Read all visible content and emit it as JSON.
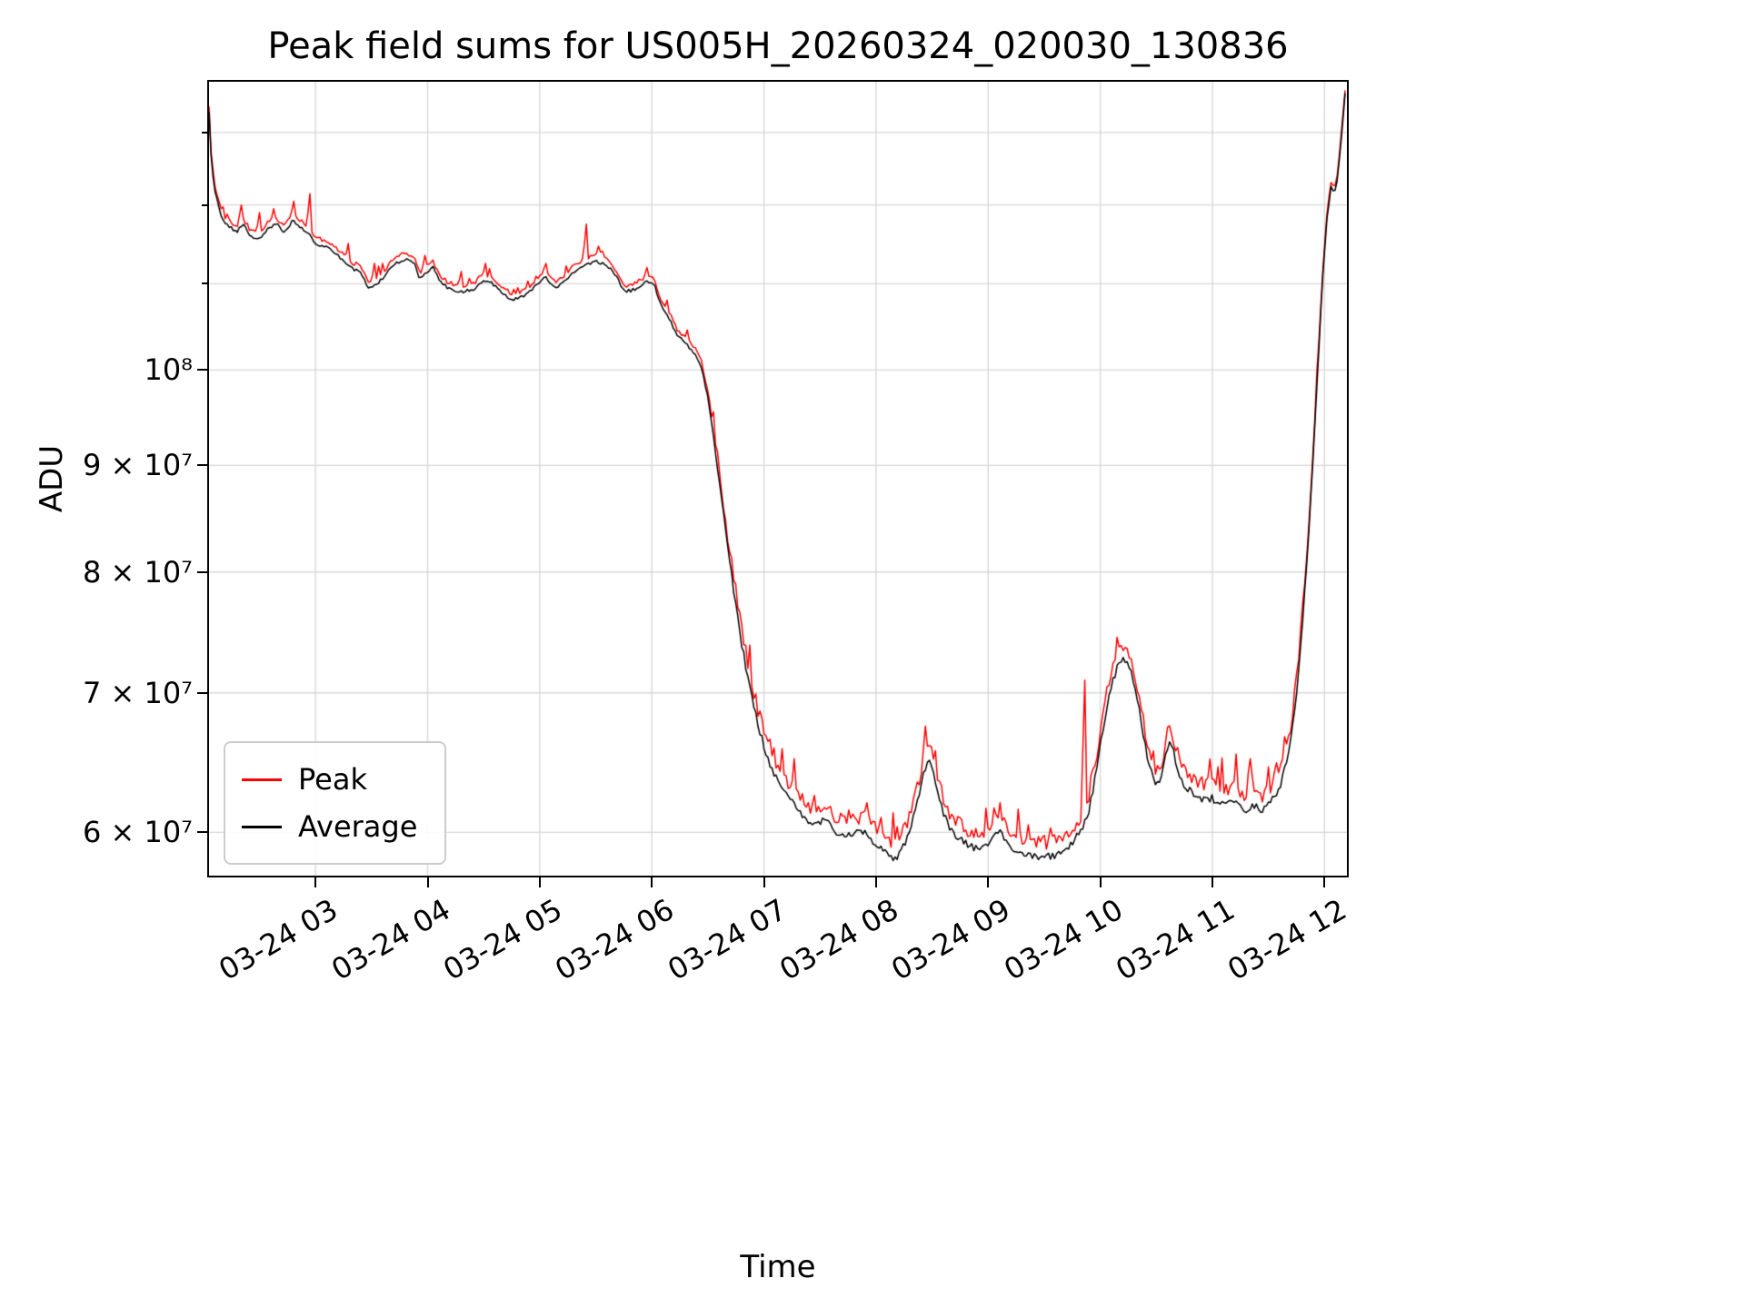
{
  "chart_data": {
    "type": "line",
    "title": "Peak field sums for US005H_20260324_020030_130836",
    "xlabel": "Time",
    "ylabel": "ADU",
    "yscale": "log",
    "grid": true,
    "legend_position": "lower left",
    "values_unit": 1000000,
    "xlim_hours": [
      2.05,
      12.2
    ],
    "ylim": [
      57200000,
      137500000
    ],
    "xticks": {
      "hours": [
        3,
        4,
        5,
        6,
        7,
        8,
        9,
        10,
        11,
        12
      ],
      "labels": [
        "03-24 03",
        "03-24 04",
        "03-24 05",
        "03-24 06",
        "03-24 07",
        "03-24 08",
        "03-24 09",
        "03-24 10",
        "03-24 11",
        "03-24 12"
      ]
    },
    "yticks": {
      "values": [
        60000000,
        70000000,
        80000000,
        90000000,
        100000000
      ],
      "labels": [
        "6 × 10⁷",
        "7 × 10⁷",
        "8 × 10⁷",
        "9 × 10⁷",
        "10⁸"
      ],
      "minor_values": [
        110000000,
        120000000,
        130000000
      ]
    },
    "series": [
      {
        "name": "Peak",
        "color": "#ff0000"
      },
      {
        "name": "Average",
        "color": "#000000"
      }
    ],
    "average_keyframes": [
      [
        2.05,
        133
      ],
      [
        2.07,
        126
      ],
      [
        2.1,
        122
      ],
      [
        2.15,
        119
      ],
      [
        2.2,
        117.5
      ],
      [
        2.3,
        116.5
      ],
      [
        2.35,
        117.5
      ],
      [
        2.42,
        116
      ],
      [
        2.5,
        115.5
      ],
      [
        2.58,
        117
      ],
      [
        2.65,
        117.5
      ],
      [
        2.72,
        116.5
      ],
      [
        2.8,
        118
      ],
      [
        2.88,
        117
      ],
      [
        2.95,
        116
      ],
      [
        3.0,
        115
      ],
      [
        3.1,
        114.5
      ],
      [
        3.2,
        113.5
      ],
      [
        3.3,
        112
      ],
      [
        3.4,
        111.5
      ],
      [
        3.47,
        109.5
      ],
      [
        3.55,
        110
      ],
      [
        3.62,
        111
      ],
      [
        3.7,
        112.5
      ],
      [
        3.8,
        113
      ],
      [
        3.88,
        112.5
      ],
      [
        3.93,
        110.5
      ],
      [
        4.0,
        111.5
      ],
      [
        4.05,
        112
      ],
      [
        4.1,
        110.5
      ],
      [
        4.18,
        109.5
      ],
      [
        4.28,
        109
      ],
      [
        4.4,
        109.2
      ],
      [
        4.5,
        110.5
      ],
      [
        4.58,
        110
      ],
      [
        4.68,
        108.8
      ],
      [
        4.75,
        108
      ],
      [
        4.85,
        108.5
      ],
      [
        4.95,
        109.5
      ],
      [
        5.05,
        110.8
      ],
      [
        5.12,
        109.5
      ],
      [
        5.2,
        110
      ],
      [
        5.3,
        111.5
      ],
      [
        5.4,
        112.2
      ],
      [
        5.5,
        112.8
      ],
      [
        5.6,
        112.3
      ],
      [
        5.68,
        111
      ],
      [
        5.75,
        109
      ],
      [
        5.85,
        109.3
      ],
      [
        5.95,
        110.2
      ],
      [
        6.02,
        110
      ],
      [
        6.08,
        107.5
      ],
      [
        6.15,
        106
      ],
      [
        6.22,
        104
      ],
      [
        6.3,
        103
      ],
      [
        6.4,
        101.5
      ],
      [
        6.45,
        100
      ],
      [
        6.5,
        97
      ],
      [
        6.55,
        93
      ],
      [
        6.6,
        88.5
      ],
      [
        6.65,
        84.5
      ],
      [
        6.7,
        80.5
      ],
      [
        6.75,
        77
      ],
      [
        6.8,
        74
      ],
      [
        6.85,
        71.5
      ],
      [
        6.9,
        69.3
      ],
      [
        6.95,
        67.5
      ],
      [
        7.0,
        66
      ],
      [
        7.05,
        64.8
      ],
      [
        7.1,
        63.8
      ],
      [
        7.15,
        63.2
      ],
      [
        7.2,
        62.5
      ],
      [
        7.3,
        61.5
      ],
      [
        7.4,
        60.8
      ],
      [
        7.5,
        60.5
      ],
      [
        7.55,
        61
      ],
      [
        7.6,
        60.3
      ],
      [
        7.7,
        59.8
      ],
      [
        7.8,
        59.9
      ],
      [
        7.9,
        60.1
      ],
      [
        7.95,
        59.6
      ],
      [
        8.0,
        59.2
      ],
      [
        8.05,
        59
      ],
      [
        8.1,
        58.7
      ],
      [
        8.15,
        58.3
      ],
      [
        8.2,
        58.5
      ],
      [
        8.25,
        59.2
      ],
      [
        8.3,
        60.2
      ],
      [
        8.35,
        61.5
      ],
      [
        8.42,
        63.8
      ],
      [
        8.46,
        65
      ],
      [
        8.5,
        64.3
      ],
      [
        8.55,
        62.8
      ],
      [
        8.6,
        61.3
      ],
      [
        8.65,
        60.3
      ],
      [
        8.7,
        59.8
      ],
      [
        8.8,
        59.3
      ],
      [
        8.9,
        58.9
      ],
      [
        9.0,
        59.3
      ],
      [
        9.05,
        59.8
      ],
      [
        9.1,
        60.3
      ],
      [
        9.15,
        59.5
      ],
      [
        9.2,
        59
      ],
      [
        9.3,
        58.7
      ],
      [
        9.4,
        58.4
      ],
      [
        9.5,
        58.4
      ],
      [
        9.6,
        58.5
      ],
      [
        9.7,
        58.9
      ],
      [
        9.8,
        59.8
      ],
      [
        9.85,
        60.5
      ],
      [
        9.9,
        61.5
      ],
      [
        9.95,
        63.5
      ],
      [
        10.0,
        66
      ],
      [
        10.05,
        68.5
      ],
      [
        10.1,
        70.5
      ],
      [
        10.15,
        72
      ],
      [
        10.2,
        72.6
      ],
      [
        10.25,
        72.2
      ],
      [
        10.3,
        70.8
      ],
      [
        10.35,
        68.5
      ],
      [
        10.4,
        66
      ],
      [
        10.45,
        64.2
      ],
      [
        10.5,
        63.2
      ],
      [
        10.55,
        63.8
      ],
      [
        10.6,
        66
      ],
      [
        10.63,
        66.3
      ],
      [
        10.67,
        65
      ],
      [
        10.72,
        63.5
      ],
      [
        10.8,
        62.8
      ],
      [
        10.9,
        62.3
      ],
      [
        11.0,
        62.3
      ],
      [
        11.1,
        61.8
      ],
      [
        11.2,
        62
      ],
      [
        11.3,
        61.5
      ],
      [
        11.35,
        61.8
      ],
      [
        11.45,
        61.5
      ],
      [
        11.55,
        62.3
      ],
      [
        11.6,
        63
      ],
      [
        11.65,
        64.5
      ],
      [
        11.7,
        66.5
      ],
      [
        11.75,
        70
      ],
      [
        11.8,
        75
      ],
      [
        11.85,
        82
      ],
      [
        11.9,
        91
      ],
      [
        11.94,
        100
      ],
      [
        11.98,
        110
      ],
      [
        12.02,
        118
      ],
      [
        12.06,
        122.5
      ],
      [
        12.09,
        121.5
      ],
      [
        12.12,
        124
      ],
      [
        12.15,
        129
      ],
      [
        12.18,
        135
      ],
      [
        12.2,
        138
      ]
    ],
    "peak_spikes": [
      [
        2.33,
        120
      ],
      [
        2.5,
        119
      ],
      [
        2.62,
        119.5
      ],
      [
        2.8,
        120.5
      ],
      [
        2.95,
        121.5
      ],
      [
        3.3,
        115
      ],
      [
        3.52,
        112.5
      ],
      [
        3.97,
        113.5
      ],
      [
        4.3,
        111.5
      ],
      [
        4.52,
        112.5
      ],
      [
        5.05,
        112.5
      ],
      [
        5.42,
        117.5
      ],
      [
        5.52,
        114.5
      ],
      [
        5.95,
        112
      ],
      [
        6.55,
        95.5
      ],
      [
        7.05,
        66.5
      ],
      [
        7.25,
        63.5
      ],
      [
        7.45,
        62.5
      ],
      [
        7.75,
        61.5
      ],
      [
        8.05,
        61
      ],
      [
        8.44,
        66
      ],
      [
        8.75,
        61
      ],
      [
        9.1,
        62
      ],
      [
        9.35,
        60.5
      ],
      [
        9.55,
        60.3
      ],
      [
        9.87,
        71
      ],
      [
        10.17,
        73.5
      ],
      [
        10.62,
        67.5
      ],
      [
        10.9,
        63.8
      ],
      [
        11.05,
        64.5
      ],
      [
        11.2,
        63.5
      ],
      [
        11.35,
        63.8
      ],
      [
        11.5,
        64.5
      ],
      [
        11.58,
        64.8
      ]
    ],
    "noise": {
      "seed": 42,
      "sample_step_hours": 0.018,
      "low_threshold_m": 80,
      "avg_amp_low": 0.004,
      "avg_amp_high": 0.0018,
      "peak_offset_low": 0.008,
      "peak_offset_high": 0.004,
      "peak_amp_low": 0.02,
      "peak_amp_high": 0.006
    },
    "colors": {
      "grid": "#d8d8d8",
      "spine": "#000000",
      "background": "#ffffff"
    }
  }
}
